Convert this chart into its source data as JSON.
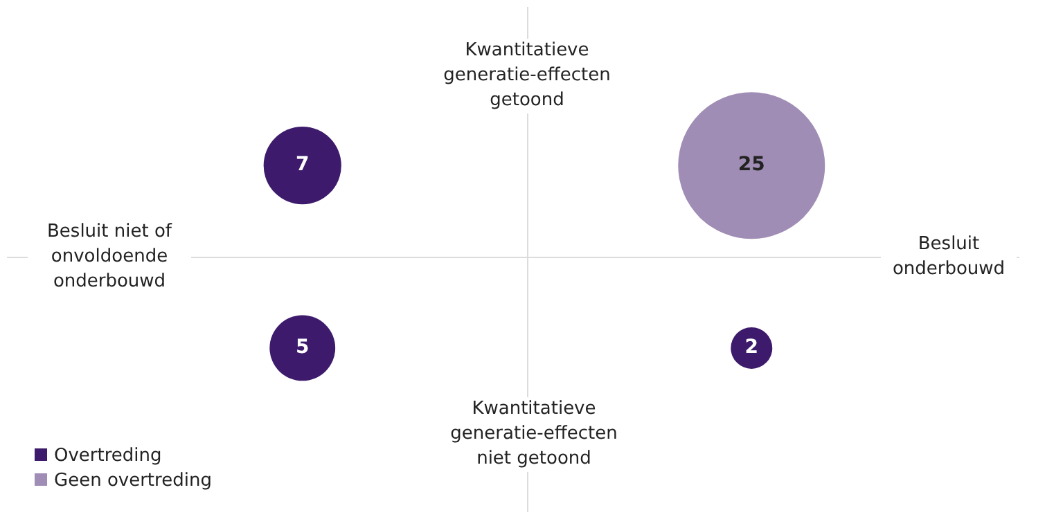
{
  "chart_data": {
    "type": "other",
    "categories": [
      "Besluit niet of onvoldoende onderbouwd",
      "Besluit onderbouwd"
    ],
    "y_categories": [
      "Kwantitatieve generatie-effecten getoond",
      "Kwantitatieve generatie-effecten niet getoond"
    ],
    "series": [
      {
        "values": [
          7,
          25
        ],
        "colors": [
          "#3d1a6b",
          "#a08db5"
        ]
      },
      {
        "values": [
          5,
          2
        ],
        "colors": [
          "#3d1a6b",
          "#3d1a6b"
        ]
      },
      {
        "name": "Overtreding",
        "color": "#3d1a6b",
        "values": [
          null,
          null
        ]
      },
      {
        "name": "Geen overtreding",
        "color": "#a08db5",
        "values": [
          null,
          null
        ]
      }
    ],
    "data_labels": true,
    "legend": "bottom left"
  }
}
